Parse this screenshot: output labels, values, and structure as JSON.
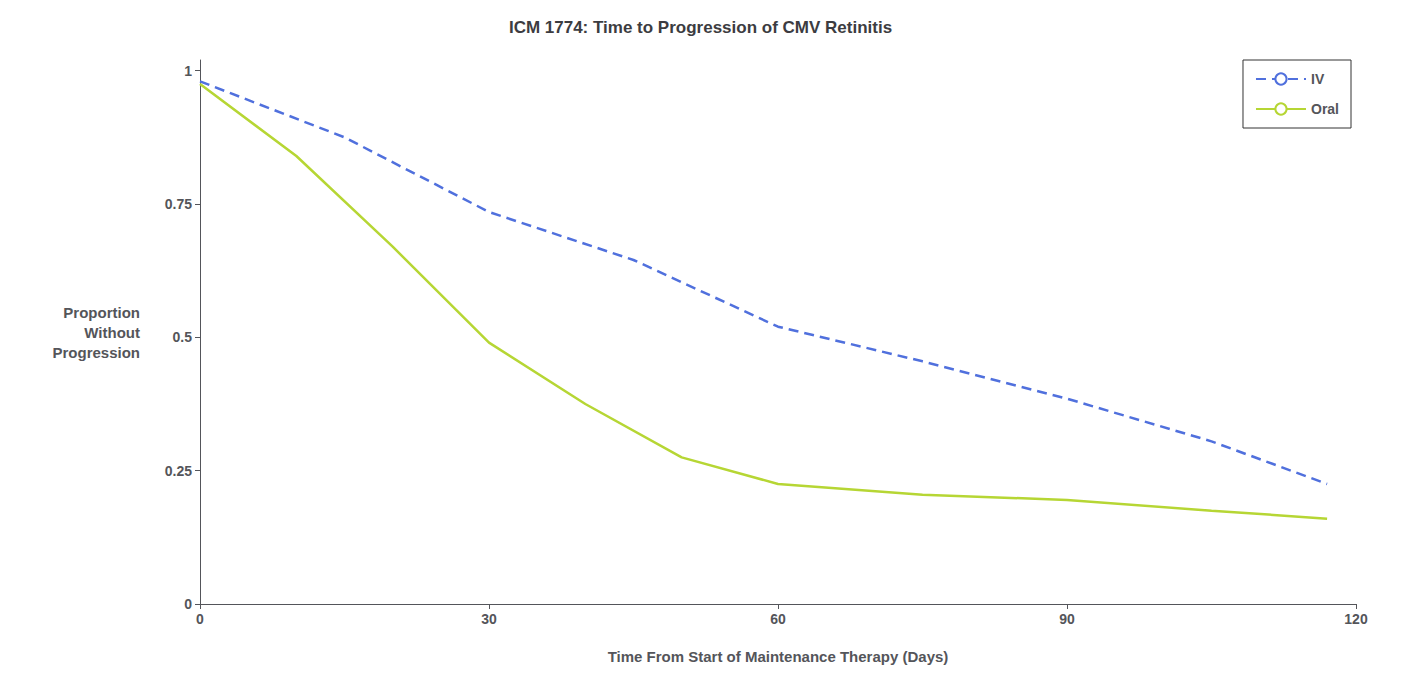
{
  "chart_data": {
    "type": "line",
    "title": "ICM 1774: Time to Progression of CMV Retinitis",
    "xlabel": "Time From Start of Maintenance Therapy (Days)",
    "ylabel": "Proportion\nWithout\nProgression",
    "xlim": [
      0,
      120
    ],
    "ylim": [
      0,
      1.02
    ],
    "xticks": [
      0,
      30,
      60,
      90,
      120
    ],
    "yticks": [
      0,
      0.25,
      0.5,
      0.75,
      1
    ],
    "grid": false,
    "legend": "upper right",
    "series": [
      {
        "name": "IV",
        "line_style": "dashed",
        "x": [
          0,
          15,
          30,
          45,
          60,
          75,
          90,
          105,
          117
        ],
        "values": [
          0.98,
          0.875,
          0.735,
          0.645,
          0.52,
          0.455,
          0.385,
          0.305,
          0.225
        ]
      },
      {
        "name": "Oral",
        "line_style": "solid",
        "x": [
          0,
          10,
          20,
          30,
          40,
          50,
          60,
          75,
          90,
          105,
          117
        ],
        "values": [
          0.975,
          0.84,
          0.67,
          0.49,
          0.375,
          0.275,
          0.225,
          0.205,
          0.195,
          0.175,
          0.16
        ]
      }
    ]
  }
}
